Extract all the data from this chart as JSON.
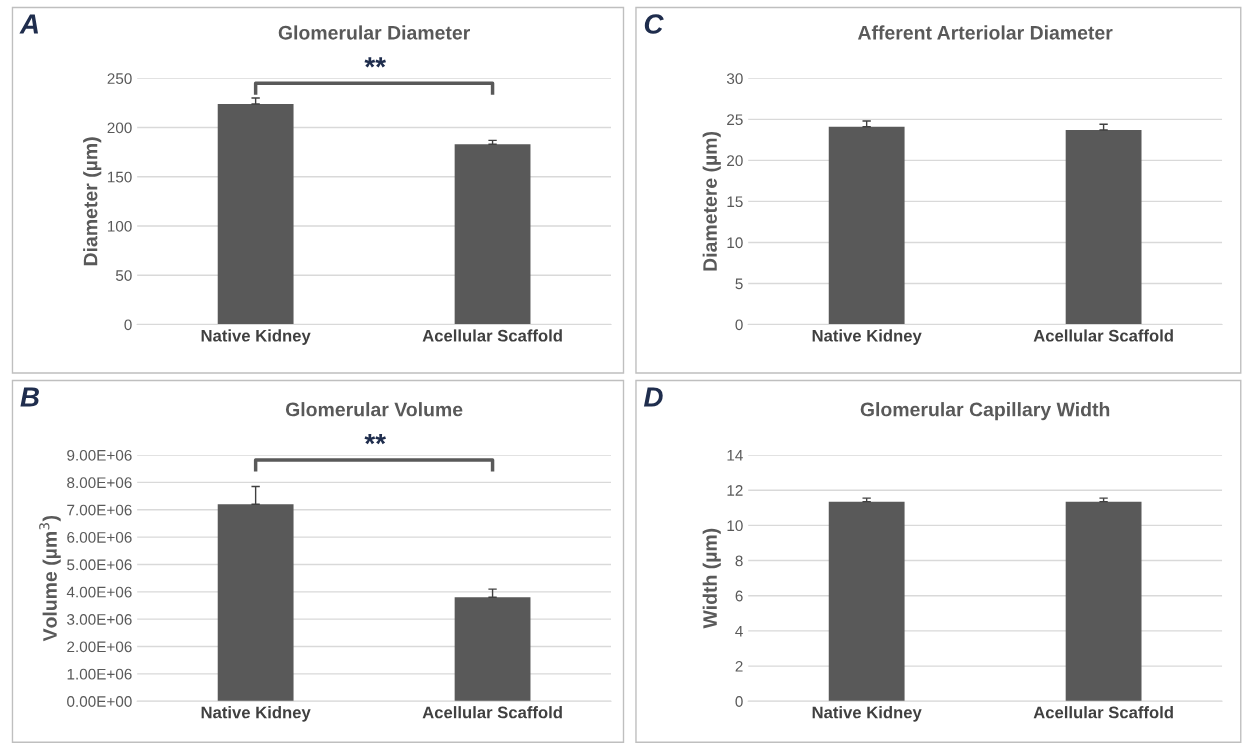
{
  "chart_data": [
    {
      "type": "bar",
      "title": "Glomerular Diameter",
      "ylabel": "Diameter (µm)",
      "categories": [
        "Native Kidney",
        "Acellular Scaffold"
      ],
      "values": [
        224,
        183
      ],
      "errors": [
        [
          224,
          230
        ],
        [
          183,
          187
        ]
      ],
      "color": "#595959",
      "ylim": [
        0,
        250
      ],
      "yticks": [
        0,
        50,
        100,
        150,
        200,
        250
      ],
      "grid": "y",
      "annotations": [
        "A",
        "**"
      ]
    },
    {
      "type": "bar",
      "title": "Afferent Arteriolar Diameter",
      "ylabel": "Diametere (µm)",
      "categories": [
        "Native Kidney",
        "Acellular Scaffold"
      ],
      "values": [
        24.1,
        23.7
      ],
      "errors": [
        [
          24.1,
          24.8
        ],
        [
          23.7,
          24.4
        ]
      ],
      "color": "#595959",
      "ylim": [
        0,
        30
      ],
      "yticks": [
        0,
        5,
        10,
        15,
        20,
        25,
        30
      ],
      "grid": "y",
      "annotations": [
        "C"
      ]
    },
    {
      "type": "bar",
      "title": "Glomerular Volume",
      "ylabel": "Volume (µm$^{3}$)",
      "categories": [
        "Native Kidney",
        "Acellular Scaffold"
      ],
      "values": [
        7200000,
        3800000
      ],
      "errors": [
        [
          7200000,
          7850000
        ],
        [
          3800000,
          4100000
        ]
      ],
      "color": "#595959",
      "ylim": [
        0,
        9000000
      ],
      "yticks": [
        {
          "value": 0,
          "label": "0.00E+00"
        },
        {
          "value": 1000000,
          "label": "1.00E+06"
        },
        {
          "value": 2000000,
          "label": "2.00E+06"
        },
        {
          "value": 3000000,
          "label": "3.00E+06"
        },
        {
          "value": 4000000,
          "label": "4.00E+06"
        },
        {
          "value": 5000000,
          "label": "5.00E+06"
        },
        {
          "value": 6000000,
          "label": "6.00E+06"
        },
        {
          "value": 7000000,
          "label": "7.00E+06"
        },
        {
          "value": 8000000,
          "label": "8.00E+06"
        },
        {
          "value": 9000000,
          "label": "9.00E+06"
        }
      ],
      "grid": "y",
      "annotations": [
        "B",
        "**"
      ]
    },
    {
      "type": "bar",
      "title": "Glomerular Capillary Width",
      "ylabel": "Width (µm)",
      "categories": [
        "Native Kidney",
        "Acellular Scaffold"
      ],
      "values": [
        11.35,
        11.35
      ],
      "errors": [
        [
          11.35,
          11.55
        ],
        [
          11.35,
          11.55
        ]
      ],
      "color": "#595959",
      "ylim": [
        0,
        14
      ],
      "yticks": [
        0,
        2,
        4,
        6,
        8,
        10,
        12,
        14
      ],
      "grid": "y",
      "annotations": [
        "D"
      ]
    }
  ]
}
